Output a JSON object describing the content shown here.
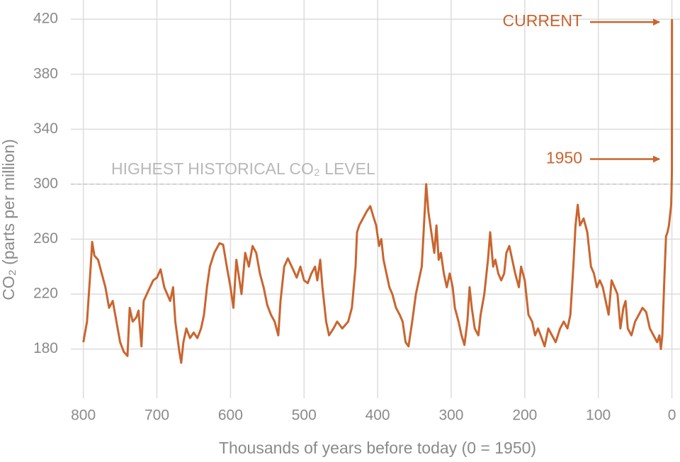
{
  "chart_data": {
    "type": "line",
    "x_label": "Thousands of years before today (0 = 1950)",
    "y_label": "CO₂ (parts per million)",
    "xlim": [
      817,
      -11
    ],
    "ylim": [
      153,
      434
    ],
    "xticks": [
      800,
      700,
      600,
      500,
      400,
      300,
      200,
      100,
      0
    ],
    "yticks": [
      180,
      220,
      260,
      300,
      340,
      380,
      420
    ],
    "grid": true,
    "annotations": [
      {
        "text": "HIGHEST HISTORICAL CO₂ LEVEL",
        "y": 300
      },
      {
        "text": "CURRENT",
        "y": 420
      },
      {
        "text": "1950",
        "y": 310
      }
    ],
    "x": [
      800,
      795,
      790,
      788,
      785,
      780,
      775,
      770,
      765,
      760,
      755,
      750,
      745,
      740,
      737,
      733,
      728,
      725,
      721,
      718,
      712,
      705,
      700,
      695,
      690,
      686,
      682,
      678,
      675,
      670,
      667,
      664,
      660,
      655,
      650,
      645,
      640,
      636,
      632,
      628,
      622,
      615,
      610,
      605,
      600,
      596,
      592,
      585,
      580,
      575,
      570,
      565,
      560,
      555,
      550,
      545,
      540,
      535,
      532,
      527,
      522,
      515,
      510,
      505,
      500,
      495,
      490,
      485,
      482,
      478,
      475,
      470,
      466,
      460,
      455,
      448,
      440,
      435,
      430,
      428,
      425,
      420,
      415,
      410,
      405,
      402,
      398,
      395,
      392,
      388,
      384,
      380,
      375,
      370,
      366,
      362,
      358,
      353,
      348,
      344,
      340,
      337,
      334,
      331,
      327,
      323,
      320,
      317,
      314,
      310,
      306,
      302,
      298,
      295,
      290,
      286,
      282,
      278,
      275,
      272,
      268,
      263,
      260,
      255,
      250,
      247,
      243,
      240,
      236,
      232,
      228,
      225,
      221,
      217,
      213,
      208,
      205,
      200,
      195,
      190,
      186,
      182,
      177,
      173,
      168,
      163,
      158,
      152,
      147,
      142,
      138,
      134,
      131,
      128,
      125,
      120,
      115,
      110,
      106,
      102,
      98,
      94,
      90,
      86,
      82,
      78,
      74,
      70,
      66,
      63,
      60,
      55,
      50,
      45,
      40,
      35,
      30,
      25,
      20,
      17,
      15,
      13,
      10,
      8,
      6,
      4,
      2,
      1,
      0.5,
      0,
      -0.07
    ],
    "series": [
      {
        "color": "#c9652f",
        "values": [
          185,
          200,
          240,
          258,
          248,
          245,
          235,
          225,
          210,
          215,
          200,
          185,
          178,
          175,
          210,
          200,
          203,
          208,
          182,
          215,
          222,
          230,
          232,
          238,
          225,
          220,
          215,
          225,
          200,
          180,
          170,
          185,
          195,
          188,
          192,
          188,
          195,
          205,
          225,
          240,
          250,
          257,
          256,
          240,
          225,
          210,
          245,
          220,
          250,
          240,
          255,
          250,
          235,
          225,
          212,
          205,
          200,
          190,
          215,
          240,
          246,
          238,
          232,
          240,
          230,
          228,
          235,
          240,
          230,
          245,
          225,
          200,
          190,
          195,
          200,
          195,
          200,
          210,
          240,
          265,
          270,
          275,
          280,
          284,
          275,
          270,
          255,
          260,
          245,
          235,
          225,
          220,
          210,
          205,
          200,
          185,
          182,
          200,
          220,
          230,
          240,
          270,
          300,
          280,
          265,
          250,
          270,
          245,
          250,
          235,
          225,
          235,
          225,
          210,
          200,
          190,
          183,
          200,
          225,
          210,
          195,
          190,
          205,
          220,
          245,
          265,
          240,
          245,
          235,
          230,
          235,
          250,
          255,
          245,
          235,
          225,
          240,
          230,
          205,
          200,
          190,
          195,
          188,
          182,
          195,
          190,
          185,
          195,
          200,
          195,
          205,
          240,
          270,
          285,
          270,
          275,
          265,
          240,
          235,
          225,
          230,
          225,
          215,
          205,
          230,
          225,
          220,
          195,
          210,
          215,
          195,
          190,
          200,
          205,
          210,
          207,
          195,
          190,
          185,
          190,
          180,
          190,
          235,
          262,
          265,
          270,
          280,
          285,
          295,
          310,
          420
        ]
      }
    ]
  }
}
